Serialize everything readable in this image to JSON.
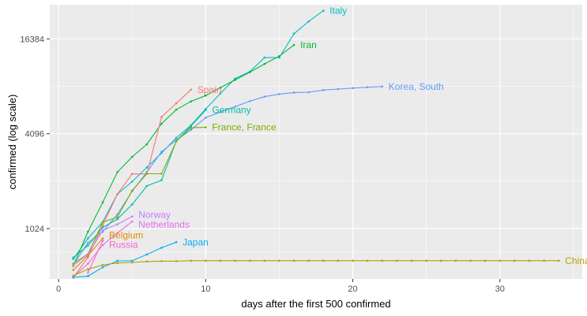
{
  "chart_data": {
    "type": "line",
    "title": "",
    "xlabel": "days after the first 500 confirmed",
    "ylabel": "confirmed  (log scale)",
    "y_scale": "log2",
    "xlim": [
      -0.6,
      35.6
    ],
    "ylim": [
      490,
      27000
    ],
    "x_ticks": [
      0,
      10,
      20,
      30
    ],
    "y_ticks": [
      1024,
      4096,
      16384
    ],
    "grid": true,
    "legend": "direct labels at line ends",
    "panel_background": "#ebebeb",
    "series": [
      {
        "name": "Italy",
        "color": "#00bfc4",
        "x": [
          1,
          2,
          3,
          4,
          5,
          6,
          7,
          8,
          9,
          10,
          11,
          12,
          13,
          14,
          15,
          16,
          17,
          18
        ],
        "y": [
          655,
          888,
          1128,
          1694,
          2036,
          2502,
          3089,
          3858,
          4636,
          5883,
          7375,
          9172,
          10149,
          12462,
          12462,
          17660,
          21157,
          24747
        ]
      },
      {
        "name": "Iran",
        "color": "#00ba38",
        "x": [
          1,
          2,
          3,
          4,
          5,
          6,
          7,
          8,
          9,
          10,
          11,
          12,
          13,
          14,
          15,
          16
        ],
        "y": [
          593,
          978,
          1501,
          2336,
          2922,
          3513,
          4747,
          5823,
          6566,
          7161,
          8042,
          9000,
          10075,
          11364,
          12729,
          14991
        ]
      },
      {
        "name": "Korea, South",
        "color": "#619cff",
        "x": [
          1,
          2,
          3,
          4,
          5,
          6,
          7,
          8,
          9,
          10,
          11,
          12,
          13,
          14,
          15,
          16,
          17,
          18,
          19,
          20,
          21,
          22
        ],
        "y": [
          602,
          833,
          977,
          1261,
          1766,
          2337,
          3150,
          3736,
          4335,
          5186,
          5621,
          6088,
          6593,
          7041,
          7314,
          7478,
          7513,
          7755,
          7869,
          7979,
          8086,
          8162
        ]
      },
      {
        "name": "Spain",
        "color": "#f8766d",
        "x": [
          1,
          2,
          3,
          4,
          5,
          6,
          7,
          8,
          9
        ],
        "y": [
          500,
          673,
          1073,
          1695,
          2277,
          2277,
          5232,
          6391,
          7798
        ]
      },
      {
        "name": "Germany",
        "color": "#00c19f",
        "x": [
          1,
          2,
          3,
          4,
          5,
          6,
          7,
          8,
          9,
          10
        ],
        "y": [
          670,
          799,
          1040,
          1176,
          1457,
          1908,
          2078,
          3675,
          4585,
          5795
        ]
      },
      {
        "name": "France, France",
        "color": "#7cae00",
        "x": [
          1,
          2,
          3,
          4,
          5,
          6,
          7,
          8,
          9,
          10
        ],
        "y": [
          613,
          706,
          1126,
          1209,
          1784,
          2281,
          2281,
          3661,
          4469,
          4499
        ]
      },
      {
        "name": "Norway",
        "color": "#c77cff",
        "x": [
          1,
          2,
          3,
          4,
          5
        ],
        "y": [
          598,
          702,
          996,
          1090,
          1221
        ]
      },
      {
        "name": "Netherlands",
        "color": "#e76bf3",
        "x": [
          1,
          2,
          3,
          4,
          5
        ],
        "y": [
          503,
          614,
          804,
          959,
          1135
        ]
      },
      {
        "name": "Belgium",
        "color": "#de8c00",
        "x": [
          1,
          2,
          3
        ],
        "y": [
          559,
          689,
          886
        ]
      },
      {
        "name": "Russia",
        "color": "#fd61d1",
        "x": [
          2,
          3
        ],
        "y": [
          540,
          855
        ]
      },
      {
        "name": "Japan",
        "color": "#00b0f6",
        "x": [
          1,
          2,
          3,
          4,
          5,
          6,
          7,
          8
        ],
        "y": [
          502,
          511,
          581,
          639,
          639,
          701,
          773,
          839
        ]
      },
      {
        "name": "China",
        "color": "#b79f00",
        "x": [
          1,
          2,
          3,
          4,
          5,
          6,
          7,
          8,
          9,
          10,
          11,
          12,
          13,
          14,
          15,
          16,
          17,
          18,
          19,
          20,
          21,
          22,
          23,
          24,
          25,
          26,
          27,
          28,
          29,
          30,
          31,
          32,
          33,
          34
        ],
        "y": [
          514,
          565,
          601,
          619,
          624,
          632,
          636,
          636,
          640,
          640,
          640,
          640,
          640,
          640,
          640,
          640,
          640,
          640,
          640,
          640,
          640,
          640,
          640,
          640,
          640,
          640,
          640,
          640,
          640,
          640,
          640,
          640,
          640,
          640
        ]
      }
    ]
  }
}
